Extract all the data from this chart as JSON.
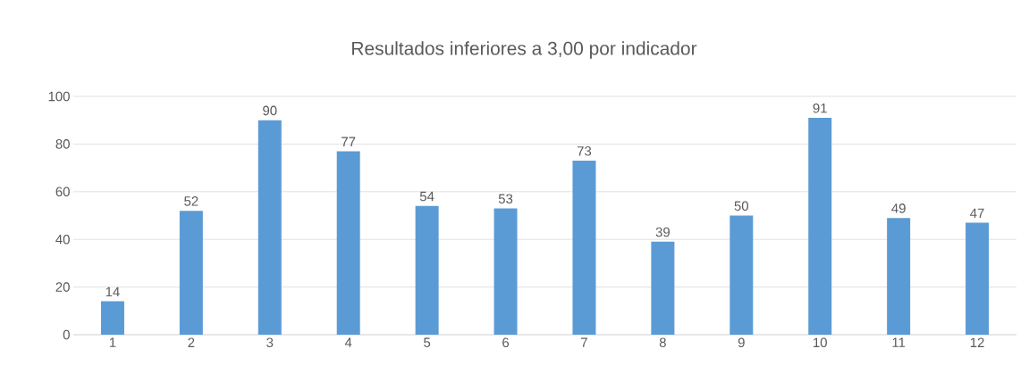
{
  "chart_data": {
    "type": "bar",
    "title": "Resultados inferiores a 3,00 por indicador",
    "categories": [
      "1",
      "2",
      "3",
      "4",
      "5",
      "6",
      "7",
      "8",
      "9",
      "10",
      "11",
      "12"
    ],
    "values": [
      14,
      52,
      90,
      77,
      54,
      53,
      73,
      39,
      50,
      91,
      49,
      47
    ],
    "color": "#5b9bd5",
    "ylim": [
      0,
      100
    ],
    "yticks": [
      0,
      20,
      40,
      60,
      80,
      100
    ],
    "grid": "y",
    "data_labels": true
  }
}
